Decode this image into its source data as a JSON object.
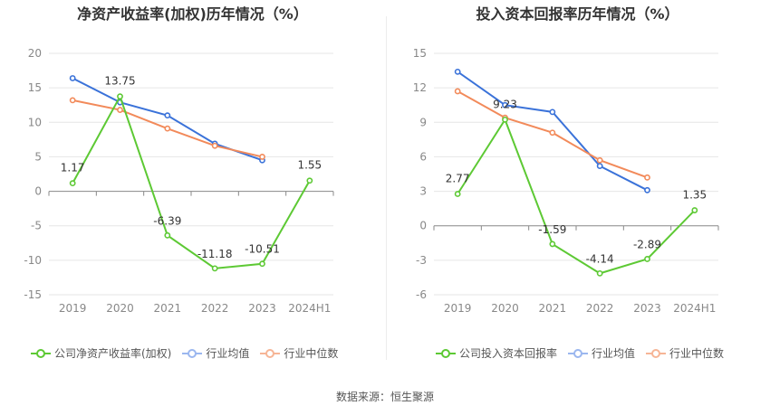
{
  "source_note": "数据来源：恒生聚源",
  "chart_data": [
    {
      "type": "line",
      "title": "净资产收益率(加权)历年情况（%）",
      "categories": [
        "2019",
        "2020",
        "2021",
        "2022",
        "2023",
        "2024H1"
      ],
      "ylim": [
        -15,
        20
      ],
      "yticks": [
        20,
        15,
        10,
        5,
        0,
        -5,
        -10,
        -15
      ],
      "grid": true,
      "legend_position": "bottom",
      "series": [
        {
          "name": "公司净资产收益率(加权)",
          "color": "#5dc934",
          "values": [
            1.17,
            13.75,
            -6.39,
            -11.18,
            -10.51,
            1.55
          ],
          "labels": [
            "1.17",
            "13.75",
            "-6.39",
            "-11.18",
            "-10.51",
            "1.55"
          ]
        },
        {
          "name": "行业均值",
          "color": "#3a72d9",
          "values": [
            16.4,
            12.9,
            11.0,
            6.9,
            4.5,
            null
          ]
        },
        {
          "name": "行业中位数",
          "color": "#f28a5a",
          "values": [
            13.2,
            11.8,
            9.1,
            6.6,
            5.0,
            null
          ]
        }
      ]
    },
    {
      "type": "line",
      "title": "投入资本回报率历年情况（%）",
      "categories": [
        "2019",
        "2020",
        "2021",
        "2022",
        "2023",
        "2024H1"
      ],
      "ylim": [
        -6,
        15
      ],
      "yticks": [
        15,
        12,
        9,
        6,
        3,
        0,
        -3,
        -6
      ],
      "grid": true,
      "legend_position": "bottom",
      "series": [
        {
          "name": "公司投入资本回报率",
          "color": "#5dc934",
          "values": [
            2.77,
            9.23,
            -1.59,
            -4.14,
            -2.89,
            1.35
          ],
          "labels": [
            "2.77",
            "9.23",
            "-1.59",
            "-4.14",
            "-2.89",
            "1.35"
          ]
        },
        {
          "name": "行业均值",
          "color": "#3a72d9",
          "values": [
            13.4,
            10.5,
            9.9,
            5.2,
            3.1,
            null
          ]
        },
        {
          "name": "行业中位数",
          "color": "#f28a5a",
          "values": [
            11.7,
            9.4,
            8.1,
            5.7,
            4.2,
            null
          ]
        }
      ]
    }
  ]
}
